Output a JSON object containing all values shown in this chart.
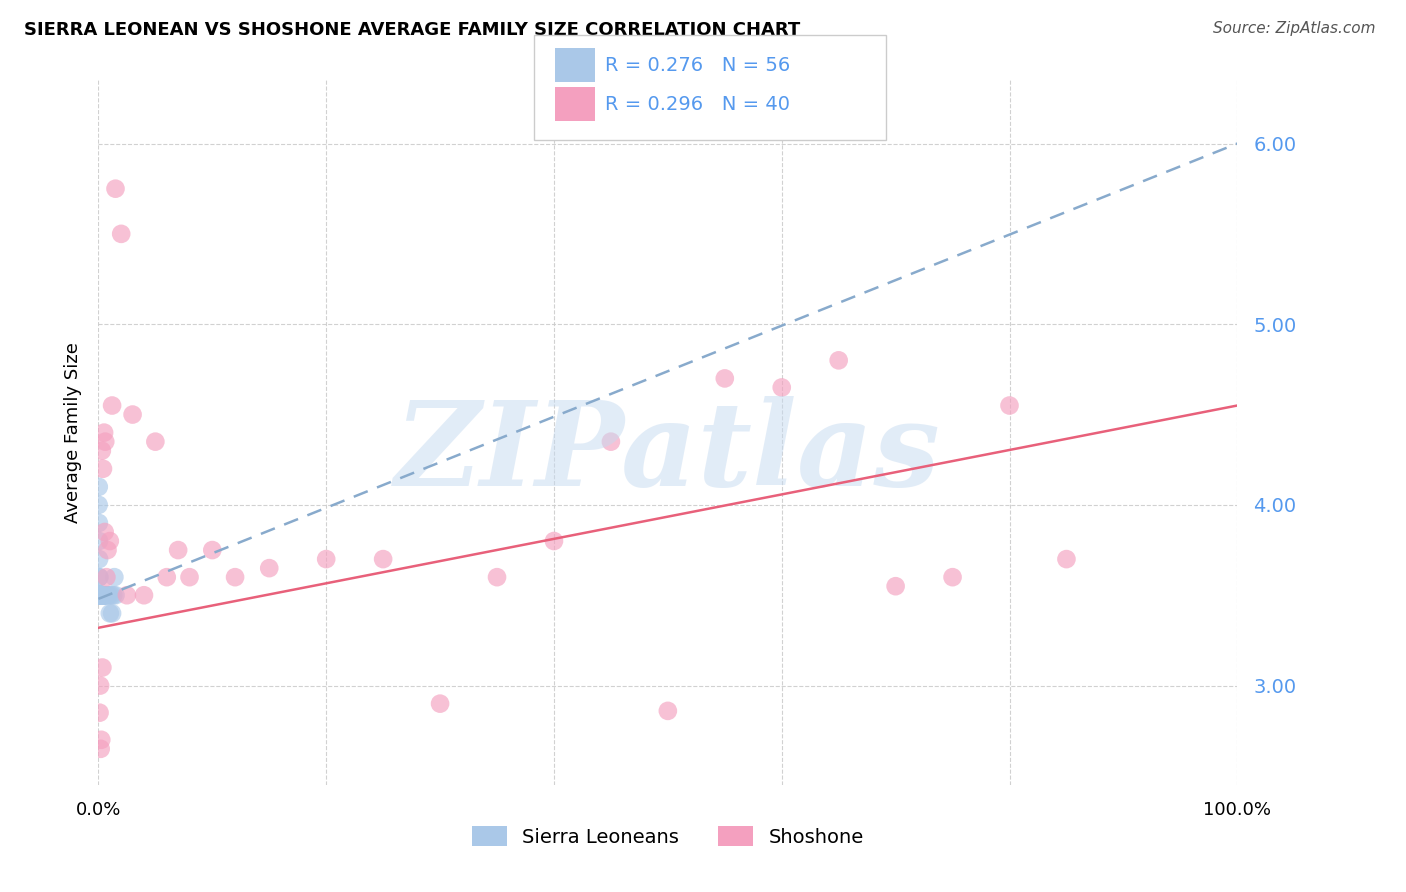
{
  "title": "SIERRA LEONEAN VS SHOSHONE AVERAGE FAMILY SIZE CORRELATION CHART",
  "source": "Source: ZipAtlas.com",
  "ylabel": "Average Family Size",
  "xlim": [
    0,
    100
  ],
  "ylim": [
    2.45,
    6.35
  ],
  "yticks": [
    3.0,
    4.0,
    5.0,
    6.0
  ],
  "xticks": [
    0,
    20,
    40,
    60,
    80,
    100
  ],
  "xticklabels": [
    "0.0%",
    "",
    "",
    "",
    "",
    "100.0%"
  ],
  "yticklabels": [
    "3.00",
    "4.00",
    "5.00",
    "6.00"
  ],
  "sierra_color": "#aac8e8",
  "shoshone_color": "#f4a0bf",
  "sierra_line_color": "#88aacc",
  "shoshone_line_color": "#e8607a",
  "watermark": "ZIPatlas",
  "watermark_color": "#c5daf0",
  "background_color": "#ffffff",
  "ytick_color": "#5599ee",
  "legend_text_color": "#5599ee",
  "legend_r1": "R = 0.276",
  "legend_n1": "N = 56",
  "legend_r2": "R = 0.296",
  "legend_n2": "N = 40",
  "sierra_reg_x0": 0,
  "sierra_reg_y0": 3.48,
  "sierra_reg_x1": 100,
  "sierra_reg_y1": 6.0,
  "shoshone_reg_x0": 0,
  "shoshone_reg_y0": 3.32,
  "shoshone_reg_x1": 100,
  "shoshone_reg_y1": 4.55,
  "sierra_x": [
    0.02,
    0.03,
    0.04,
    0.05,
    0.06,
    0.07,
    0.08,
    0.09,
    0.1,
    0.11,
    0.12,
    0.13,
    0.14,
    0.15,
    0.16,
    0.17,
    0.18,
    0.19,
    0.2,
    0.22,
    0.24,
    0.25,
    0.26,
    0.28,
    0.3,
    0.32,
    0.35,
    0.38,
    0.4,
    0.42,
    0.45,
    0.5,
    0.55,
    0.6,
    0.65,
    0.7,
    0.8,
    0.9,
    1.0,
    1.1,
    1.2,
    1.3,
    1.4,
    1.5,
    0.01,
    0.01,
    0.02,
    0.02,
    0.03,
    0.03,
    0.04,
    0.05,
    0.06,
    0.07,
    0.08,
    0.1
  ],
  "sierra_y": [
    4.0,
    4.1,
    3.9,
    3.8,
    3.7,
    3.6,
    3.6,
    3.5,
    3.5,
    3.5,
    3.5,
    3.5,
    3.5,
    3.5,
    3.5,
    3.5,
    3.5,
    3.5,
    3.5,
    3.5,
    3.5,
    3.5,
    3.5,
    3.5,
    3.5,
    3.5,
    3.5,
    3.5,
    3.5,
    3.5,
    3.5,
    3.5,
    3.5,
    3.5,
    3.5,
    3.5,
    3.5,
    3.5,
    3.4,
    3.5,
    3.4,
    3.5,
    3.6,
    3.5,
    3.5,
    3.5,
    3.5,
    3.5,
    3.5,
    3.5,
    3.5,
    3.5,
    3.5,
    3.5,
    3.5,
    3.5
  ],
  "shoshone_x": [
    0.15,
    0.2,
    0.25,
    0.3,
    0.4,
    0.5,
    0.6,
    0.8,
    1.0,
    1.5,
    2.0,
    3.0,
    4.0,
    5.0,
    6.0,
    7.0,
    8.0,
    10.0,
    12.0,
    15.0,
    20.0,
    25.0,
    30.0,
    35.0,
    40.0,
    45.0,
    50.0,
    55.0,
    60.0,
    65.0,
    70.0,
    75.0,
    80.0,
    85.0,
    0.1,
    0.35,
    0.55,
    0.7,
    1.2,
    2.5
  ],
  "shoshone_y": [
    3.0,
    2.65,
    2.7,
    4.3,
    4.2,
    4.4,
    4.35,
    3.75,
    3.8,
    5.75,
    5.5,
    4.5,
    3.5,
    4.35,
    3.6,
    3.75,
    3.6,
    3.75,
    3.6,
    3.65,
    3.7,
    3.7,
    2.9,
    3.6,
    3.8,
    4.35,
    2.86,
    4.7,
    4.65,
    4.8,
    3.55,
    3.6,
    4.55,
    3.7,
    2.85,
    3.1,
    3.85,
    3.6,
    4.55,
    3.5
  ]
}
